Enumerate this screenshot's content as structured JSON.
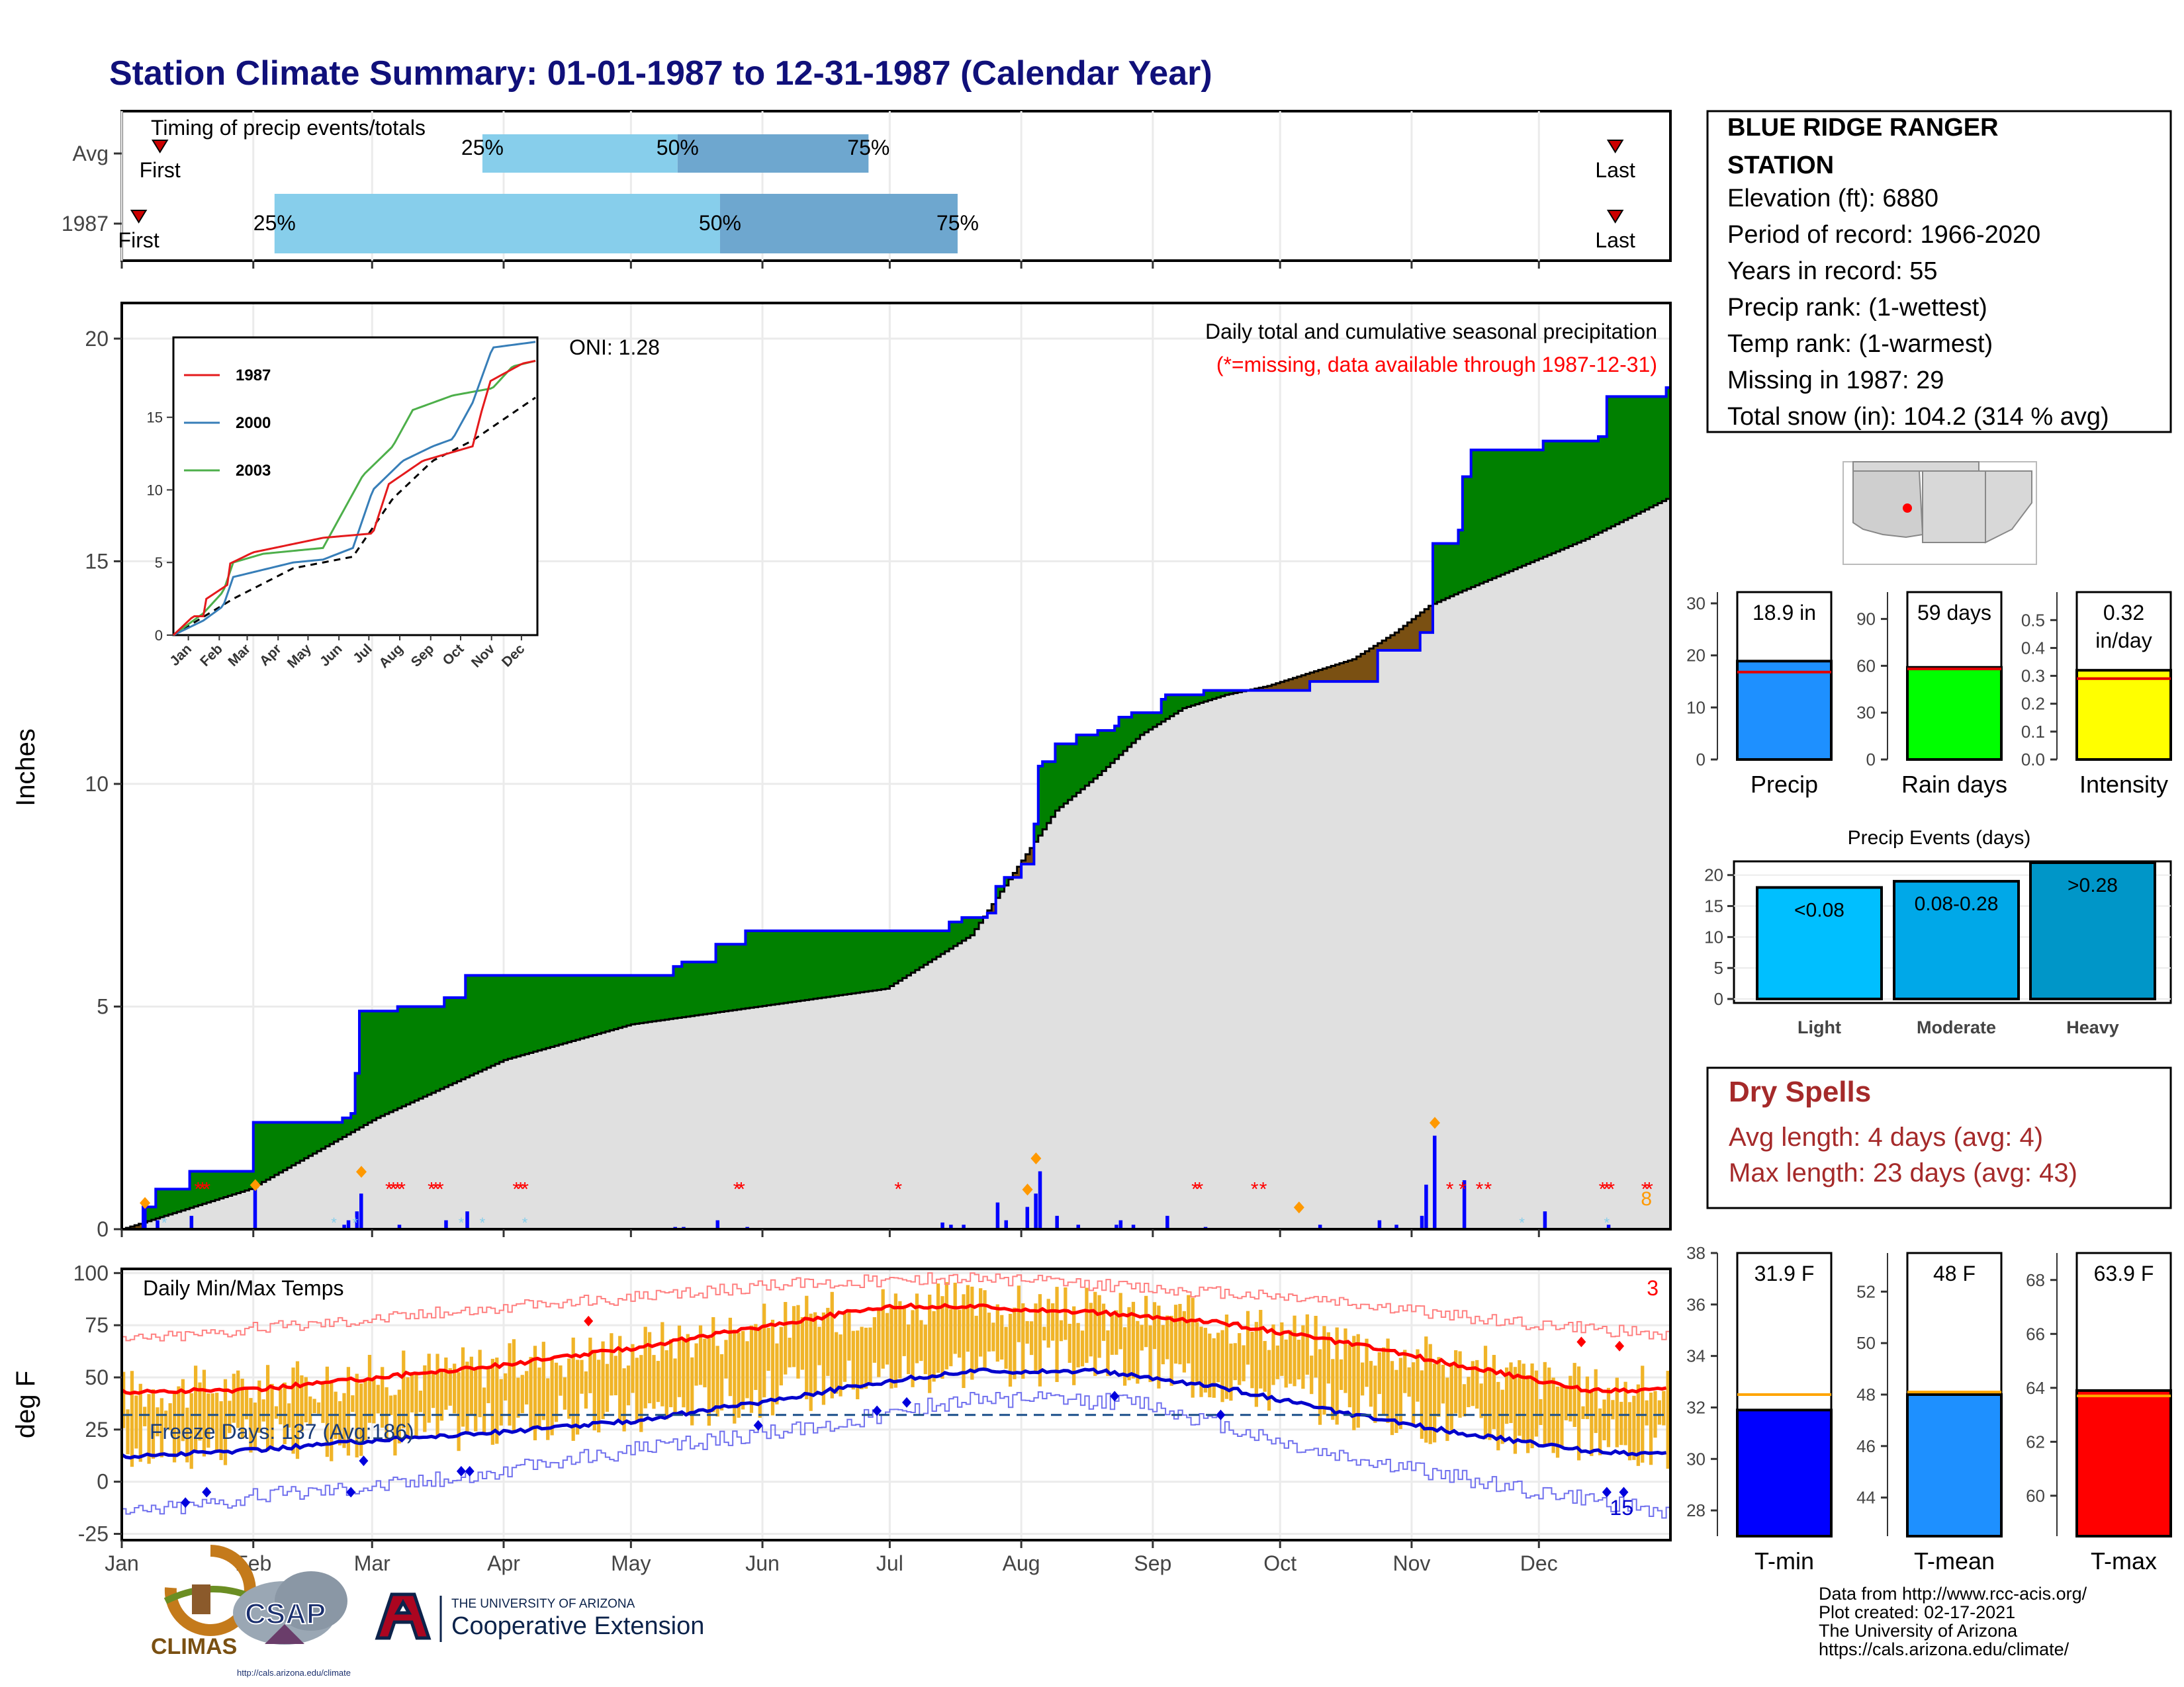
{
  "title": "Station Climate Summary: 01-01-1987 to 12-31-1987 (Calendar Year)",
  "colors": {
    "title": "#10107a",
    "green": "#008000",
    "brown": "#7a5012",
    "gray_fill": "#e0e0e0",
    "blue": "#0000ff",
    "red": "#ff0000",
    "light_blue": "#87ceeb",
    "mid_blue": "#6ea7cf",
    "gold": "#f0b428",
    "dry_red": "#a52a2a",
    "orange": "#ff9900"
  },
  "timing": {
    "label": "Timing of precip events/totals",
    "rows": [
      {
        "name": "Avg",
        "first_label": "First",
        "last_label": "Last",
        "first": 9,
        "p25": 85,
        "p50": 131,
        "p75": 176,
        "last": 352,
        "labels": [
          "25%",
          "50%",
          "75%"
        ]
      },
      {
        "name": "1987",
        "first_label": "First",
        "last_label": "Last",
        "first": 4,
        "p25": 36,
        "p50": 141,
        "p75": 197,
        "last": 352,
        "labels": [
          "25%",
          "50%",
          "75%"
        ]
      }
    ]
  },
  "main_panel": {
    "ylabel": "Inches",
    "title_line1": "Daily total and cumulative seasonal precipitation",
    "title_line2": "(*=missing, data available through 1987-12-31)",
    "oni": "ONI: 1.28",
    "corner_value": "8",
    "y_ticks": [
      "0",
      "5",
      "10",
      "15",
      "20"
    ]
  },
  "temp_panel": {
    "ylabel": "deg F",
    "title": "Daily Min/Max Temps",
    "freeze": "Freeze Days: 137 (Avg:186)",
    "top_count": "3",
    "bottom_count": "15",
    "y_ticks": [
      "-25",
      "0",
      "25",
      "50",
      "75",
      "100"
    ]
  },
  "months": [
    "Jan",
    "Feb",
    "Mar",
    "Apr",
    "May",
    "Jun",
    "Jul",
    "Aug",
    "Sep",
    "Oct",
    "Nov",
    "Dec"
  ],
  "inset": {
    "series": [
      {
        "name": "1987",
        "color": "#e41a1c"
      },
      {
        "name": "2000",
        "color": "#377eb8"
      },
      {
        "name": "2003",
        "color": "#4daf4a"
      }
    ],
    "y_ticks": [
      "0",
      "5",
      "10",
      "15"
    ]
  },
  "station": {
    "name_line1": "BLUE RIDGE RANGER",
    "name_line2": "STATION",
    "lines": [
      "Elevation (ft): 6880",
      "Period of record: 1966-2020",
      "Years in record: 55",
      "Precip rank:  (1-wettest)",
      "Temp rank:  (1-warmest)",
      "Missing in 1987: 29",
      "Total snow (in): 104.2 (314 % avg)"
    ]
  },
  "summary_bars": [
    {
      "label": "Precip",
      "value": 18.9,
      "avg": 16.8,
      "max": 30,
      "ticks": [
        "0",
        "10",
        "20",
        "30"
      ],
      "text": "18.9 in",
      "color": "#1e90ff"
    },
    {
      "label": "Rain days",
      "value": 59,
      "avg": 58,
      "max": 100,
      "ticks": [
        "0",
        "30",
        "60",
        "90"
      ],
      "text": "59 days",
      "color": "#00ff00"
    },
    {
      "label": "Intensity",
      "value": 0.32,
      "avg": 0.29,
      "max": 0.56,
      "ticks": [
        "0.0",
        "0.1",
        "0.2",
        "0.3",
        "0.4",
        "0.5"
      ],
      "text": "0.32",
      "text2": "in/day",
      "color": "#ffff00"
    }
  ],
  "events": {
    "title": "Precip Events (days)",
    "ticks": [
      "0",
      "5",
      "10",
      "15",
      "20"
    ],
    "bars": [
      {
        "label": "Light",
        "value": 18,
        "text": "<0.08",
        "color": "#00bfff"
      },
      {
        "label": "Moderate",
        "value": 19,
        "text": "0.08-0.28",
        "color": "#00a8e8"
      },
      {
        "label": "Heavy",
        "value": 22,
        "text": ">0.28",
        "color": "#0096c8"
      }
    ]
  },
  "dry_spells": {
    "title": "Dry Spells",
    "avg": "Avg length: 4 days (avg: 4)",
    "max": "Max length: 23 days (avg: 43)"
  },
  "temp_bars": [
    {
      "label": "T-min",
      "value": 31.9,
      "avg": 32.5,
      "min": 27,
      "max": 38,
      "ticks": [
        "28",
        "30",
        "32",
        "34",
        "36",
        "38"
      ],
      "text": "31.9 F",
      "color": "#0000ff"
    },
    {
      "label": "T-mean",
      "value": 48,
      "avg": 48.1,
      "min": 42.5,
      "max": 53.5,
      "ticks": [
        "44",
        "46",
        "48",
        "50",
        "52"
      ],
      "text": "48 F",
      "color": "#1e90ff"
    },
    {
      "label": "T-max",
      "value": 63.9,
      "avg": 63.7,
      "min": 58.5,
      "max": 69,
      "ticks": [
        "60",
        "62",
        "64",
        "66",
        "68"
      ],
      "text": "63.9 F",
      "color": "#ff0000"
    }
  ],
  "footer": {
    "lines": [
      "Data from http://www.rcc-acis.org/",
      "Plot created: 02-17-2021",
      "The University of Arizona",
      "https://cals.arizona.edu/climate/"
    ],
    "climas": "CLIMAS",
    "csap": "CSAP",
    "csap_url": "http://cals.arizona.edu/climate",
    "ua_small": "THE UNIVERSITY OF ARIZONA",
    "ua_big": "Cooperative Extension"
  },
  "chart_data": [
    {
      "type": "area",
      "title": "Daily total and cumulative seasonal precipitation",
      "ylabel": "Inches",
      "ylim": [
        0,
        20.8
      ],
      "x_unit": "day of year",
      "cum_1987": [
        [
          0,
          0
        ],
        [
          5,
          0.5
        ],
        [
          8,
          0.9
        ],
        [
          15,
          0.9
        ],
        [
          16,
          1.3
        ],
        [
          30,
          1.3
        ],
        [
          31,
          2.4
        ],
        [
          51,
          2.4
        ],
        [
          52,
          2.5
        ],
        [
          54,
          2.6
        ],
        [
          55,
          3.5
        ],
        [
          56,
          4.9
        ],
        [
          64,
          4.9
        ],
        [
          65,
          5.0
        ],
        [
          75,
          5.0
        ],
        [
          76,
          5.2
        ],
        [
          80,
          5.2
        ],
        [
          81,
          5.7
        ],
        [
          95,
          5.7
        ],
        [
          102,
          5.7
        ],
        [
          130,
          5.9
        ],
        [
          132,
          6.0
        ],
        [
          140,
          6.4
        ],
        [
          146,
          6.4
        ],
        [
          147,
          6.7
        ],
        [
          193,
          6.7
        ],
        [
          195,
          6.9
        ],
        [
          198,
          7.0
        ],
        [
          203,
          7.0
        ],
        [
          204,
          7.1
        ],
        [
          206,
          7.7
        ],
        [
          208,
          7.9
        ],
        [
          212,
          8.2
        ],
        [
          215,
          9.1
        ],
        [
          216,
          10.4
        ],
        [
          217,
          10.5
        ],
        [
          220,
          10.9
        ],
        [
          225,
          11.1
        ],
        [
          230,
          11.2
        ],
        [
          234,
          11.3
        ],
        [
          235,
          11.5
        ],
        [
          238,
          11.6
        ],
        [
          245,
          11.9
        ],
        [
          246,
          12.0
        ],
        [
          255,
          12.1
        ],
        [
          275,
          12.1
        ],
        [
          280,
          12.3
        ],
        [
          296,
          13.0
        ],
        [
          306,
          13.4
        ],
        [
          309,
          15.4
        ],
        [
          315,
          15.7
        ],
        [
          316,
          16.9
        ],
        [
          318,
          17.5
        ],
        [
          335,
          17.7
        ],
        [
          348,
          17.8
        ],
        [
          350,
          18.7
        ],
        [
          364,
          18.9
        ]
      ],
      "cum_avg": [
        [
          0,
          0
        ],
        [
          30,
          0.9
        ],
        [
          60,
          2.5
        ],
        [
          90,
          3.8
        ],
        [
          120,
          4.6
        ],
        [
          150,
          5.0
        ],
        [
          180,
          5.4
        ],
        [
          190,
          6.0
        ],
        [
          200,
          6.6
        ],
        [
          210,
          8.0
        ],
        [
          220,
          9.4
        ],
        [
          230,
          10.2
        ],
        [
          240,
          11.1
        ],
        [
          250,
          11.7
        ],
        [
          260,
          12.0
        ],
        [
          270,
          12.2
        ],
        [
          280,
          12.5
        ],
        [
          290,
          12.8
        ],
        [
          300,
          13.4
        ],
        [
          308,
          14.0
        ],
        [
          315,
          14.3
        ],
        [
          330,
          14.9
        ],
        [
          345,
          15.5
        ],
        [
          364,
          16.4
        ]
      ],
      "daily_precip": [
        [
          5,
          0.5
        ],
        [
          8,
          0.2
        ],
        [
          16,
          0.3
        ],
        [
          31,
          0.9
        ],
        [
          52,
          0.1
        ],
        [
          53,
          0.2
        ],
        [
          55,
          0.4
        ],
        [
          56,
          0.8
        ],
        [
          65,
          0.1
        ],
        [
          76,
          0.2
        ],
        [
          81,
          0.4
        ],
        [
          130,
          0.05
        ],
        [
          132,
          0.05
        ],
        [
          140,
          0.2
        ],
        [
          147,
          0.05
        ],
        [
          193,
          0.15
        ],
        [
          195,
          0.1
        ],
        [
          198,
          0.1
        ],
        [
          206,
          0.6
        ],
        [
          208,
          0.2
        ],
        [
          213,
          0.5
        ],
        [
          215,
          0.8
        ],
        [
          216,
          1.3
        ],
        [
          220,
          0.3
        ],
        [
          225,
          0.1
        ],
        [
          234,
          0.1
        ],
        [
          235,
          0.2
        ],
        [
          238,
          0.1
        ],
        [
          246,
          0.3
        ],
        [
          255,
          0.05
        ],
        [
          282,
          0.1
        ],
        [
          296,
          0.2
        ],
        [
          300,
          0.1
        ],
        [
          306,
          0.3
        ],
        [
          307,
          1.0
        ],
        [
          309,
          2.1
        ],
        [
          316,
          1.1
        ],
        [
          335,
          0.4
        ],
        [
          350,
          0.1
        ]
      ],
      "missing_days": [
        18,
        19,
        20,
        63,
        64,
        65,
        66,
        73,
        74,
        75,
        93,
        94,
        95,
        145,
        146,
        183,
        253,
        254,
        267,
        269,
        313,
        316,
        320,
        322,
        349,
        350,
        351,
        359,
        360
      ]
    },
    {
      "type": "line",
      "title": "Daily Min/Max Temps",
      "ylabel": "deg F",
      "ylim": [
        -28,
        102
      ],
      "avg_max": [
        [
          0,
          43
        ],
        [
          30,
          44
        ],
        [
          60,
          50
        ],
        [
          90,
          56
        ],
        [
          120,
          64
        ],
        [
          150,
          74
        ],
        [
          180,
          84
        ],
        [
          200,
          84
        ],
        [
          230,
          81
        ],
        [
          260,
          76
        ],
        [
          290,
          66
        ],
        [
          320,
          54
        ],
        [
          345,
          44
        ],
        [
          364,
          44
        ]
      ],
      "avg_min": [
        [
          0,
          12
        ],
        [
          30,
          15
        ],
        [
          60,
          20
        ],
        [
          90,
          24
        ],
        [
          120,
          29
        ],
        [
          150,
          38
        ],
        [
          180,
          48
        ],
        [
          200,
          53
        ],
        [
          230,
          53
        ],
        [
          260,
          45
        ],
        [
          290,
          32
        ],
        [
          320,
          22
        ],
        [
          345,
          15
        ],
        [
          364,
          13
        ]
      ],
      "record_max": [
        [
          0,
          68
        ],
        [
          40,
          75
        ],
        [
          80,
          82
        ],
        [
          120,
          88
        ],
        [
          160,
          95
        ],
        [
          200,
          98
        ],
        [
          240,
          93
        ],
        [
          280,
          88
        ],
        [
          320,
          78
        ],
        [
          364,
          70
        ]
      ],
      "record_min": [
        [
          0,
          -15
        ],
        [
          40,
          -5
        ],
        [
          80,
          2
        ],
        [
          120,
          15
        ],
        [
          160,
          25
        ],
        [
          200,
          40
        ],
        [
          240,
          38
        ],
        [
          280,
          15
        ],
        [
          320,
          0
        ],
        [
          364,
          -15
        ]
      ],
      "freeze_line": 32
    },
    {
      "type": "line",
      "title": "",
      "series_1987": [
        [
          0,
          0
        ],
        [
          20,
          1.3
        ],
        [
          30,
          1.3
        ],
        [
          31,
          2.4
        ],
        [
          55,
          3.5
        ],
        [
          56,
          4.9
        ],
        [
          80,
          5.7
        ],
        [
          150,
          6.7
        ],
        [
          200,
          7.0
        ],
        [
          216,
          10.4
        ],
        [
          250,
          12.0
        ],
        [
          300,
          13.0
        ],
        [
          309,
          15.4
        ],
        [
          318,
          17.5
        ],
        [
          350,
          18.7
        ],
        [
          364,
          18.9
        ]
      ],
      "series_2000": [
        [
          0,
          0
        ],
        [
          30,
          1.0
        ],
        [
          50,
          2.0
        ],
        [
          60,
          4.0
        ],
        [
          120,
          5.0
        ],
        [
          150,
          5.2
        ],
        [
          180,
          6.0
        ],
        [
          200,
          10.0
        ],
        [
          230,
          12.0
        ],
        [
          260,
          13.0
        ],
        [
          280,
          13.5
        ],
        [
          300,
          16.0
        ],
        [
          320,
          19.8
        ],
        [
          364,
          20.2
        ]
      ],
      "series_2003": [
        [
          0,
          0
        ],
        [
          30,
          1.5
        ],
        [
          50,
          3.0
        ],
        [
          60,
          5.0
        ],
        [
          90,
          5.6
        ],
        [
          150,
          6.0
        ],
        [
          190,
          11.0
        ],
        [
          220,
          13.0
        ],
        [
          240,
          15.5
        ],
        [
          280,
          16.5
        ],
        [
          320,
          17.0
        ],
        [
          340,
          18.5
        ],
        [
          364,
          18.9
        ]
      ],
      "series_avg": [
        [
          0,
          0
        ],
        [
          60,
          2.5
        ],
        [
          120,
          4.6
        ],
        [
          180,
          5.4
        ],
        [
          220,
          9.4
        ],
        [
          260,
          12.0
        ],
        [
          300,
          13.4
        ],
        [
          364,
          16.4
        ]
      ],
      "ylim": [
        0,
        20.5
      ],
      "y_ticks": [
        0,
        5,
        10,
        15
      ]
    },
    {
      "type": "bar",
      "categories": [
        "Precip",
        "Rain days",
        "Intensity"
      ],
      "values": [
        18.9,
        59,
        0.32
      ],
      "averages": [
        16.8,
        58,
        0.29
      ]
    },
    {
      "type": "bar",
      "title": "Precip Events (days)",
      "categories": [
        "Light",
        "Moderate",
        "Heavy"
      ],
      "values": [
        18,
        19,
        22
      ],
      "ylim": [
        0,
        22
      ]
    },
    {
      "type": "bar",
      "categories": [
        "T-min",
        "T-mean",
        "T-max"
      ],
      "values": [
        31.9,
        48,
        63.9
      ],
      "averages": [
        32.5,
        48.1,
        63.7
      ]
    }
  ]
}
